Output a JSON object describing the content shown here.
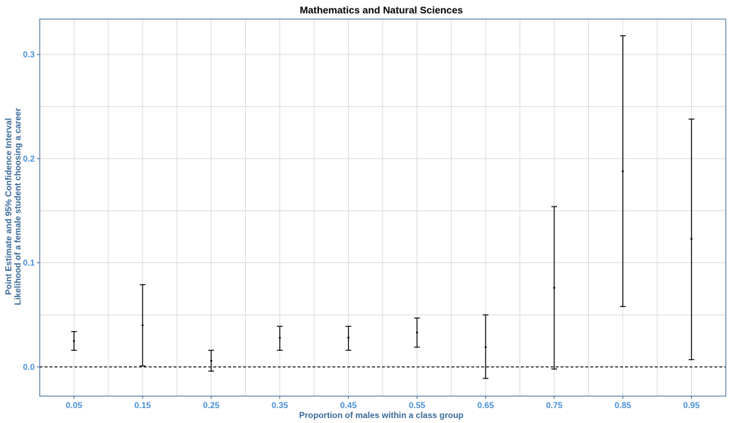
{
  "chart_data": {
    "type": "errorbar",
    "title": "Mathematics and Natural Sciences",
    "xlabel": "Proportion of males within a class group",
    "ylabel_line1": "Point Estimate and 95% Confidence Interval",
    "ylabel_line2": "Likelihood of a female student choosing a career",
    "x_tick_labels": [
      "0.05",
      "0.15",
      "0.25",
      "0.35",
      "0.45",
      "0.55",
      "0.65",
      "0.75",
      "0.85",
      "0.95"
    ],
    "y_tick_labels": [
      "0.0",
      "0.1",
      "0.2",
      "0.3"
    ],
    "xlim": [
      0.0,
      1.0
    ],
    "ylim": [
      -0.028,
      0.334
    ],
    "reference_line": 0.0,
    "grid": true,
    "points": [
      {
        "x": 0.05,
        "estimate": 0.025,
        "lower": 0.016,
        "upper": 0.034
      },
      {
        "x": 0.15,
        "estimate": 0.04,
        "lower": 0.001,
        "upper": 0.079
      },
      {
        "x": 0.25,
        "estimate": 0.006,
        "lower": -0.004,
        "upper": 0.016
      },
      {
        "x": 0.35,
        "estimate": 0.028,
        "lower": 0.016,
        "upper": 0.039
      },
      {
        "x": 0.45,
        "estimate": 0.028,
        "lower": 0.016,
        "upper": 0.039
      },
      {
        "x": 0.55,
        "estimate": 0.033,
        "lower": 0.019,
        "upper": 0.047
      },
      {
        "x": 0.65,
        "estimate": 0.019,
        "lower": -0.011,
        "upper": 0.05
      },
      {
        "x": 0.75,
        "estimate": 0.076,
        "lower": -0.002,
        "upper": 0.154
      },
      {
        "x": 0.85,
        "estimate": 0.188,
        "lower": 0.058,
        "upper": 0.318
      },
      {
        "x": 0.95,
        "estimate": 0.123,
        "lower": 0.007,
        "upper": 0.238
      }
    ],
    "colors": {
      "panel_border": "#2e5e8c",
      "grid": "#d9d9d9",
      "errorbar": "#000000",
      "tick_text": "#4a90d9",
      "axis_title": "#3a6a9a"
    }
  }
}
